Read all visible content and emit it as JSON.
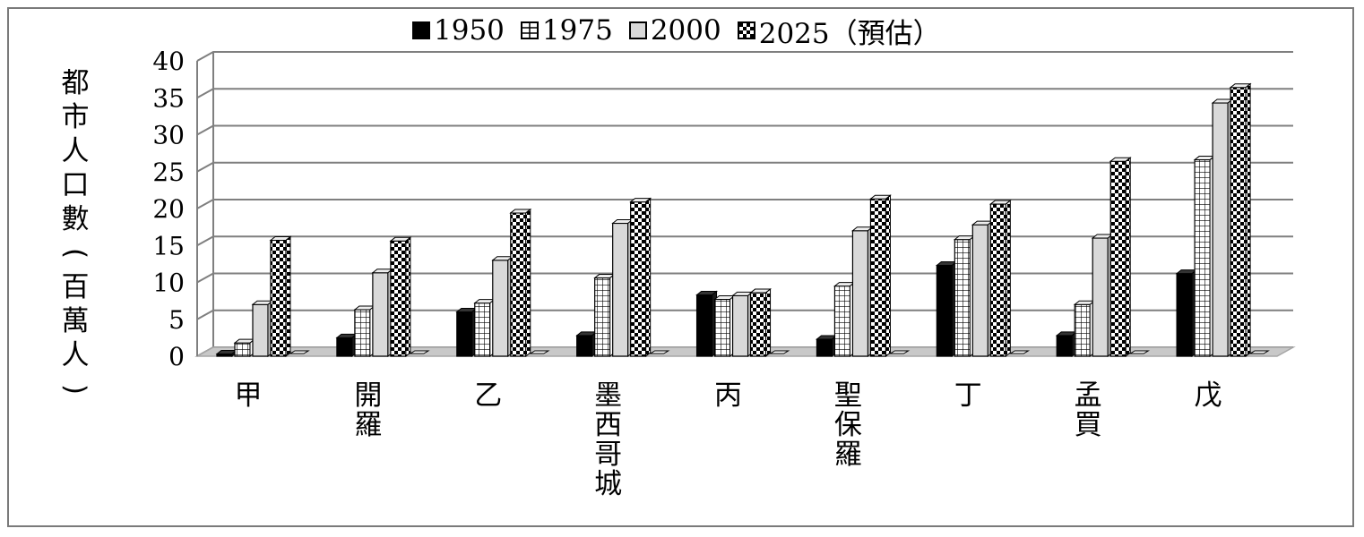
{
  "chart_data": {
    "type": "bar",
    "title": "",
    "xlabel": "",
    "ylabel": "都市人口數(百萬人)",
    "ylim": [
      0,
      40
    ],
    "yticks": [
      0,
      5,
      10,
      15,
      20,
      25,
      30,
      35,
      40
    ],
    "grid": true,
    "legend_position": "top",
    "categories": [
      "甲",
      "開羅",
      "乙",
      "墨西哥城",
      "丙",
      "聖保羅",
      "丁",
      "孟買",
      "戊"
    ],
    "series": [
      {
        "name": "1950",
        "values": [
          0.3,
          2.5,
          6.0,
          2.8,
          8.3,
          2.3,
          12.3,
          2.8,
          11.2
        ],
        "pattern": "solid-black"
      },
      {
        "name": "1975",
        "values": [
          1.8,
          6.3,
          7.2,
          10.6,
          7.7,
          9.5,
          15.8,
          7.0,
          26.6
        ],
        "pattern": "grid"
      },
      {
        "name": "2000",
        "values": [
          7.0,
          11.3,
          13.0,
          18.0,
          8.2,
          17.0,
          17.8,
          16.0,
          34.3
        ],
        "pattern": "solid-gray"
      },
      {
        "name": "2025（預估）",
        "values": [
          15.7,
          15.6,
          19.4,
          20.9,
          8.6,
          21.3,
          20.6,
          26.4,
          36.4
        ],
        "pattern": "checker"
      }
    ],
    "colors": {
      "black": "#000000",
      "gray": "#d9d9d9",
      "grid": "#7f7f7f",
      "floor": "#a6a6a6"
    }
  }
}
